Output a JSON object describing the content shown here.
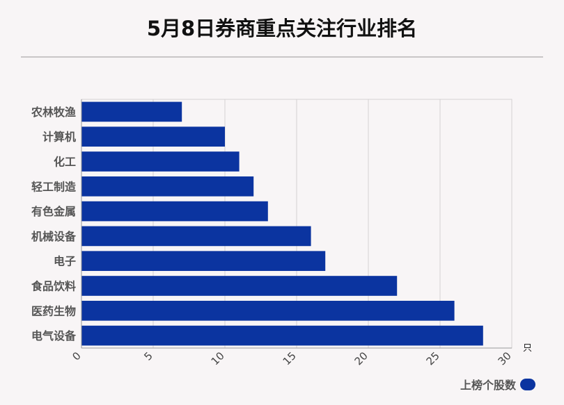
{
  "chart_data": {
    "type": "bar",
    "orientation": "horizontal",
    "title": "5月8日券商重点关注行业排名",
    "categories": [
      "农林牧渔",
      "计算机",
      "化工",
      "轻工制造",
      "有色金属",
      "机械设备",
      "电子",
      "食品饮料",
      "医药生物",
      "电气设备"
    ],
    "series": [
      {
        "name": "上榜个股数",
        "values": [
          7,
          10,
          11,
          12,
          13,
          16,
          17,
          22,
          26,
          28
        ]
      }
    ],
    "xlim": [
      0,
      30
    ],
    "xticks": [
      0,
      5,
      10,
      15,
      20,
      25,
      30
    ],
    "xlabel": "只",
    "grid": true,
    "legend": "bottom-right",
    "colors": {
      "bar": "#0b34a0",
      "grid": "#d4d1d2",
      "axis": "#999999"
    }
  }
}
